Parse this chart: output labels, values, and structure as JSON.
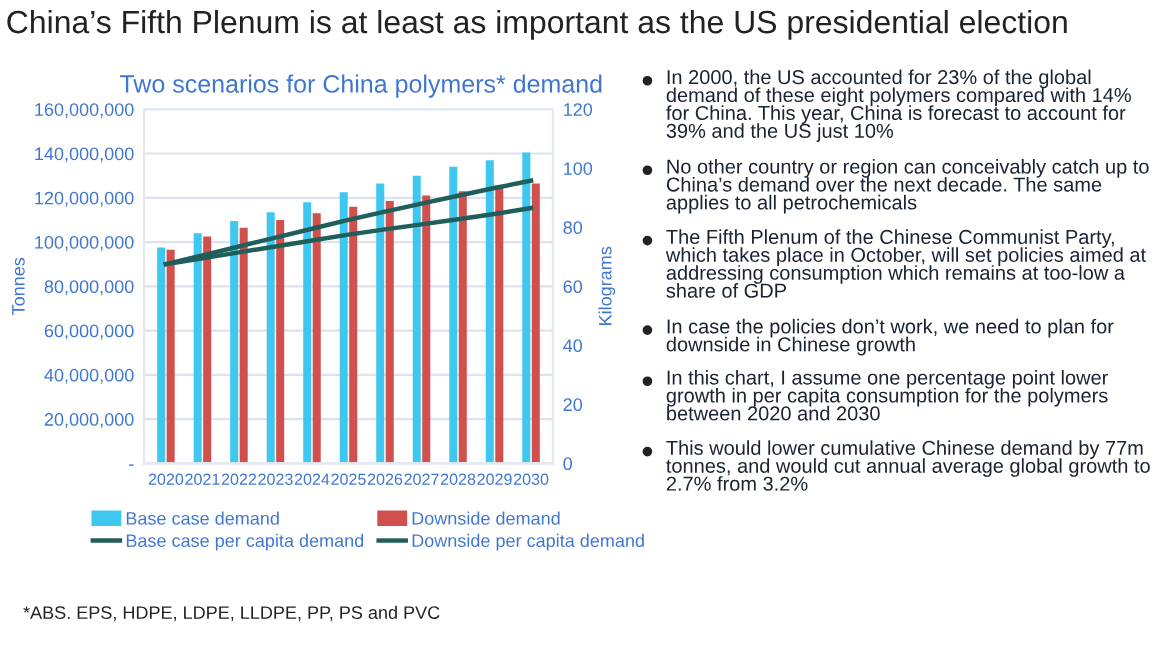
{
  "chart_data": {
    "type": "bar",
    "title": "China’s Fifth Plenum is at least as important as the US presidential election",
    "subtitle": "Two scenarios for China polymers* demand",
    "ylabel": "Tonnes",
    "y2label": "Kilograms",
    "categories": [
      "2020",
      "2021",
      "2022",
      "2023",
      "2024",
      "2025",
      "2026",
      "2027",
      "2028",
      "2029",
      "2030"
    ],
    "series": [
      {
        "name": "Base case demand",
        "color": "#3ec8f0",
        "values": [
          97500000,
          104000000,
          109500000,
          113500000,
          118000000,
          122500000,
          126500000,
          130000000,
          134000000,
          137000000,
          140500000
        ]
      },
      {
        "name": "Downside demand",
        "color": "#d0504d",
        "values": [
          96500000,
          102500000,
          106500000,
          110000000,
          113000000,
          116000000,
          118500000,
          121000000,
          123000000,
          125500000,
          126500000
        ]
      },
      {
        "name": "Base case per capita demand",
        "type": "line",
        "axis": "y2",
        "color": "#1f5e5a",
        "values": [
          67.5,
          70.5,
          73.5,
          76.5,
          79.5,
          82.5,
          85.3,
          88,
          90.7,
          93.3,
          95.8
        ]
      },
      {
        "name": "Downside per capita demand",
        "type": "line",
        "axis": "y2",
        "color": "#1f5e5a",
        "values": [
          67.5,
          69.5,
          71.5,
          73.5,
          75.5,
          77.5,
          79.3,
          81,
          82.7,
          84.5,
          86.5
        ]
      }
    ],
    "ylim": [
      0,
      160000000
    ],
    "yticks": [
      {
        "value": 0,
        "label": "-"
      },
      {
        "value": 20000000,
        "label": "20,000,000"
      },
      {
        "value": 40000000,
        "label": "40,000,000"
      },
      {
        "value": 60000000,
        "label": "60,000,000"
      },
      {
        "value": 80000000,
        "label": "80,000,000"
      },
      {
        "value": 100000000,
        "label": "100,000,000"
      },
      {
        "value": 120000000,
        "label": "120,000,000"
      },
      {
        "value": 140000000,
        "label": "140,000,000"
      },
      {
        "value": 160000000,
        "label": "160,000,000"
      }
    ],
    "y2lim": [
      0,
      120
    ],
    "y2ticks": [
      0,
      20,
      40,
      60,
      80,
      100,
      120
    ],
    "grid": "y",
    "legend": "bottom",
    "marker": "none",
    "line_style": "solid",
    "annotations": [
      "*ABS. EPS, HDPE, LDPE, LLDPE, PP, PS and PVC",
      "In 2000, the US accounted for 23% of the global demand of these eight polymers compared with 14% for China. This year, China is forecast to account for 39% and the US just 10%",
      "No other country or region can conceivably catch up to China’s demand over the next decade. The same applies to all petrochemicals",
      "The Fifth Plenum of the Chinese Communist Party, which takes place in October, will set policies aimed at addressing consumption which remains at too-low a share of GDP",
      "In case the policies don’t work, we need to plan for downside in Chinese growth",
      "In this chart, I assume one percentage point lower growth in per capita consumption for the polymers between 2020 and 2030",
      "This would lower cumulative Chinese demand by 77m tonnes, and would cut annual average global growth to 2.7% from 3.2%"
    ]
  }
}
